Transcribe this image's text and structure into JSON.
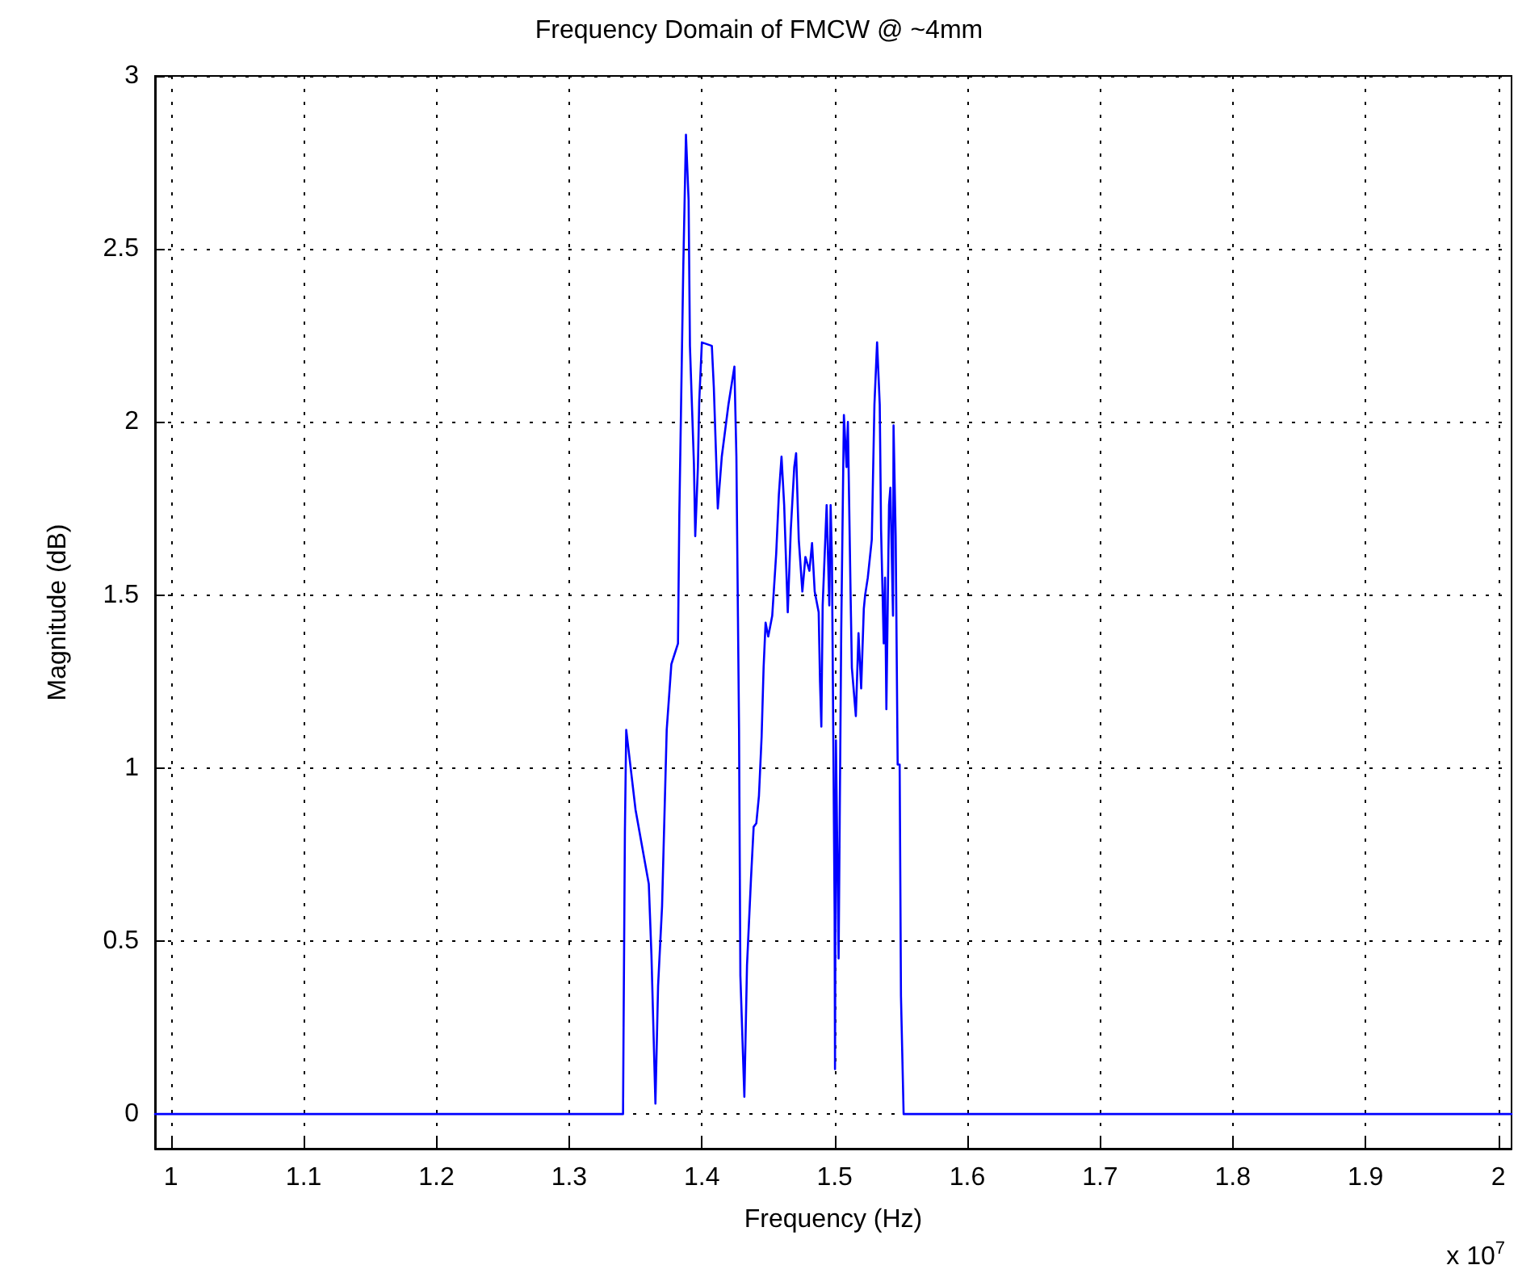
{
  "chart_data": {
    "type": "line",
    "title": "Frequency Domain of FMCW @ ~4mm",
    "xlabel": "Frequency (Hz)",
    "ylabel": "Magnitude (dB)",
    "annotations": [
      "x 10$^{7}$"
    ],
    "series": [
      {
        "color": "#0000ff",
        "x": [
          0.988,
          1.0,
          1.1,
          1.2,
          1.3,
          1.3406,
          1.341,
          1.342,
          1.343,
          1.35,
          1.36,
          1.362,
          1.365,
          1.367,
          1.37,
          1.3735,
          1.377,
          1.382,
          1.383,
          1.386,
          1.388,
          1.39,
          1.391,
          1.394,
          1.395,
          1.397,
          1.398,
          1.4,
          1.4075,
          1.409,
          1.412,
          1.415,
          1.42,
          1.4245,
          1.426,
          1.428,
          1.429,
          1.432,
          1.434,
          1.437,
          1.439,
          1.441,
          1.443,
          1.445,
          1.4465,
          1.448,
          1.45,
          1.453,
          1.456,
          1.458,
          1.46,
          1.462,
          1.4647,
          1.467,
          1.4696,
          1.471,
          1.473,
          1.4757,
          1.478,
          1.481,
          1.483,
          1.485,
          1.488,
          1.489,
          1.49,
          1.491,
          1.494,
          1.496,
          1.497,
          1.498,
          1.5,
          1.5003,
          1.501,
          1.503,
          1.505,
          1.507,
          1.509,
          1.51,
          1.512,
          1.513,
          1.516,
          1.518,
          1.52,
          1.522,
          1.523,
          1.525,
          1.528,
          1.53,
          1.532,
          1.534,
          1.535,
          1.537,
          1.538,
          1.539,
          1.541,
          1.542,
          1.544,
          1.5444,
          1.546,
          1.5475,
          1.549,
          1.55,
          1.552,
          1.6,
          1.8,
          2.0,
          2.01
        ],
        "values": [
          0,
          0,
          0,
          0,
          0,
          0,
          0.25,
          0.815,
          1.11,
          0.88,
          0.665,
          0.46,
          0.03,
          0.37,
          0.6,
          1.11,
          1.3,
          1.36,
          1.73,
          2.45,
          2.83,
          2.64,
          2.22,
          1.88,
          1.67,
          1.87,
          2.06,
          2.23,
          2.22,
          2.1,
          1.75,
          1.9,
          2.05,
          2.16,
          1.9,
          1.11,
          0.4,
          0.05,
          0.43,
          0.68,
          0.83,
          0.84,
          0.92,
          1.09,
          1.29,
          1.42,
          1.38,
          1.44,
          1.62,
          1.79,
          1.9,
          1.76,
          1.45,
          1.69,
          1.87,
          1.91,
          1.66,
          1.51,
          1.61,
          1.57,
          1.65,
          1.51,
          1.45,
          1.25,
          1.12,
          1.47,
          1.76,
          1.47,
          1.76,
          1.6,
          0.58,
          0.13,
          1.08,
          0.45,
          1.4,
          2.02,
          1.87,
          2.0,
          1.51,
          1.29,
          1.15,
          1.39,
          1.23,
          1.46,
          1.5,
          1.55,
          1.66,
          2.05,
          2.23,
          2.05,
          1.69,
          1.36,
          1.55,
          1.17,
          1.76,
          1.81,
          1.44,
          1.99,
          1.67,
          1.01,
          1.01,
          0.34,
          0,
          0,
          0,
          0,
          0
        ]
      }
    ],
    "xlim": [
      0.988,
      2.01
    ],
    "xticks": [
      1,
      1.1,
      1.2,
      1.3,
      1.4,
      1.5,
      1.6,
      1.7,
      1.8,
      1.9,
      2
    ],
    "ylim": [
      -0.1,
      3
    ],
    "yticks": [
      0,
      0.5,
      1,
      1.5,
      2,
      2.5,
      3
    ],
    "grid": true,
    "marker": "none",
    "line_style": "solid"
  }
}
